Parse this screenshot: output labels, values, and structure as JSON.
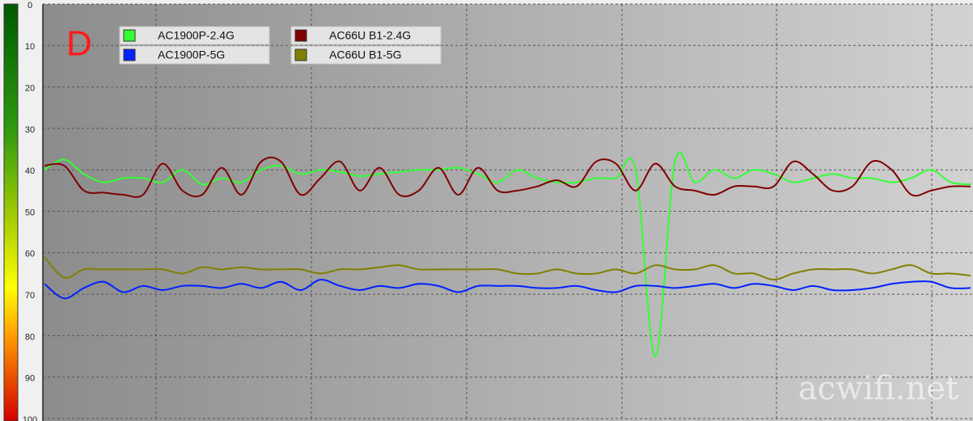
{
  "chart_data": {
    "type": "line",
    "annotation": "D",
    "watermark": "acwifi.net",
    "ylim": [
      0,
      100
    ],
    "yticks": [
      0,
      10,
      20,
      30,
      40,
      50,
      60,
      70,
      80,
      90,
      100
    ],
    "y_inverted": true,
    "grid": true,
    "legend": "top-left",
    "series": [
      {
        "name": "AC1900P-2.4G",
        "color": "#33ff33",
        "values": [
          40,
          37.5,
          41,
          43,
          42,
          42,
          43,
          40,
          43.5,
          42,
          43,
          40,
          39,
          41,
          40,
          40.5,
          41.5,
          41,
          40.5,
          40,
          40,
          39.5,
          41,
          43,
          40,
          42,
          43,
          43,
          42,
          42,
          40,
          85,
          38,
          43,
          40,
          42,
          40,
          41,
          43,
          42,
          41,
          42,
          42,
          43,
          42,
          40,
          43,
          43.5
        ]
      },
      {
        "name": "AC1900P-5G",
        "color": "#0022ff",
        "values": [
          67.5,
          71,
          68.5,
          67,
          69.5,
          68,
          69,
          68,
          68,
          68.5,
          67.5,
          68.5,
          67,
          69,
          66.5,
          68,
          69,
          68,
          68.5,
          67.5,
          68,
          69.5,
          68,
          68,
          68,
          68.5,
          68.5,
          68,
          69,
          69.5,
          68,
          68,
          68.5,
          68,
          67.5,
          68.5,
          67.5,
          68,
          69,
          68,
          69,
          69,
          68.5,
          67.5,
          67,
          67,
          68.5,
          68.5
        ]
      },
      {
        "name": "AC66U B1-2.4G",
        "color": "#800000",
        "values": [
          39,
          39,
          45,
          45.5,
          46,
          46,
          38.5,
          45,
          46,
          39.5,
          46,
          38,
          38,
          46,
          42,
          38,
          45,
          39.5,
          46,
          45,
          39.5,
          46,
          39.5,
          45,
          45,
          44,
          42.5,
          44,
          38,
          38.5,
          45,
          38.5,
          44,
          45,
          46,
          44,
          44,
          44,
          38,
          41,
          45,
          44,
          38,
          40,
          46,
          45,
          44,
          44
        ]
      },
      {
        "name": "AC66U B1-5G",
        "color": "#808000",
        "values": [
          61,
          66,
          64,
          64,
          64,
          64,
          64,
          65,
          63.5,
          64,
          63.5,
          64,
          64,
          64,
          65,
          64,
          64,
          63.5,
          63,
          64,
          64,
          64,
          64,
          64,
          65,
          65,
          64,
          65,
          65,
          64,
          65,
          63,
          64,
          64,
          63,
          65,
          65,
          66.5,
          65,
          64,
          64,
          64,
          65,
          64,
          63,
          65,
          65,
          65.5
        ]
      }
    ]
  }
}
